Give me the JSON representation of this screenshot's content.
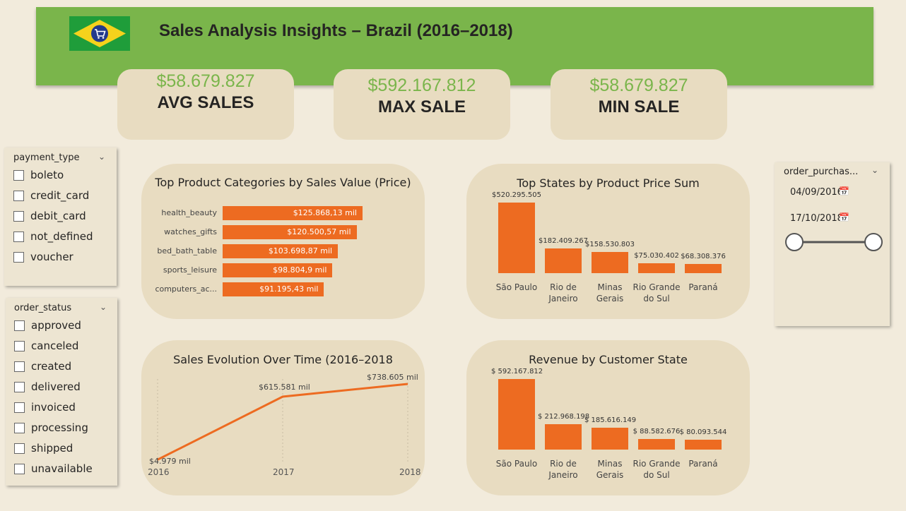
{
  "header": {
    "title": "Sales Analysis Insights – Brazil (2016–2018)"
  },
  "kpis": [
    {
      "value": "$58.679.827",
      "label": "AVG SALES"
    },
    {
      "value": "$592.167.812",
      "label": "MAX SALE"
    },
    {
      "value": "$58.679.827",
      "label": "MIN SALE"
    }
  ],
  "payment_slicer": {
    "title": "payment_type",
    "options": [
      "boleto",
      "credit_card",
      "debit_card",
      "not_defined",
      "voucher"
    ]
  },
  "status_slicer": {
    "title": "order_status",
    "options": [
      "approved",
      "canceled",
      "created",
      "delivered",
      "invoiced",
      "processing",
      "shipped",
      "unavailable"
    ]
  },
  "date_slicer": {
    "title": "order_purchas...",
    "start": "04/09/2016",
    "end": "17/10/2018"
  },
  "colors": {
    "accent": "#ed6b21",
    "brand": "#7ab54b",
    "card": "#e8dcc1",
    "background": "#f2ebdc"
  },
  "chart_data": [
    {
      "type": "bar",
      "orientation": "horizontal",
      "title": "Top Product Categories by Sales Value (Price)",
      "categories": [
        "health_beauty",
        "watches_gifts",
        "bed_bath_table",
        "sports_leisure",
        "computers_ac..."
      ],
      "values": [
        125868.13,
        120500.57,
        103698.87,
        98804.9,
        91195.43
      ],
      "labels": [
        "$125.868,13 mil",
        "$120.500,57 mil",
        "$103.698,87 mil",
        "$98.804,9 mil",
        "$91.195,43 mil"
      ]
    },
    {
      "type": "bar",
      "title": "Top States by Product Price Sum",
      "categories": [
        "São Paulo",
        "Rio de Janeiro",
        "Minas Gerais",
        "Rio Grande do Sul",
        "Paraná"
      ],
      "values": [
        520295505,
        182409267,
        158530803,
        75030402,
        68308376
      ],
      "labels": [
        "$520.295.505",
        "$182.409.267",
        "$158.530.803",
        "$75.030.402",
        "$68.308.376"
      ]
    },
    {
      "type": "line",
      "title": "Sales Evolution Over Time (2016–2018",
      "x": [
        "2016",
        "2017",
        "2018"
      ],
      "values": [
        4979,
        615581,
        738605
      ],
      "labels": [
        "$4.979 mil",
        "$615.581 mil",
        "$738.605 mil"
      ]
    },
    {
      "type": "bar",
      "title": "Revenue by Customer State",
      "categories": [
        "São Paulo",
        "Rio de Janeiro",
        "Minas Gerais",
        "Rio Grande do Sul",
        "Paraná"
      ],
      "values": [
        592167812,
        212968198,
        185616149,
        88582676,
        80093544
      ],
      "labels": [
        "$ 592.167.812",
        "$ 212.968.198",
        "$ 185.616.149",
        "$ 88.582.676",
        "$ 80.093.544"
      ]
    }
  ]
}
